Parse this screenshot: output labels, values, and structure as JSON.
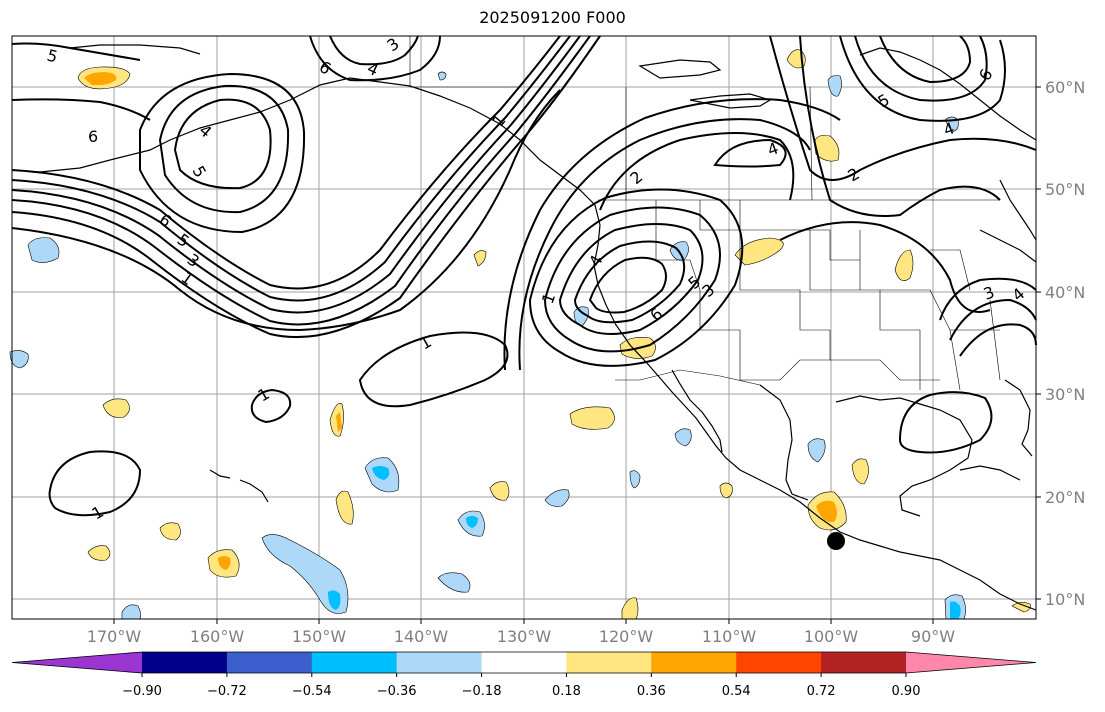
{
  "title": "2025091200 F000",
  "lat_labels": [
    "60°N",
    "50°N",
    "40°N",
    "30°N",
    "20°N",
    "10°N"
  ],
  "lon_labels": [
    "170°W",
    "160°W",
    "150°W",
    "140°W",
    "130°W",
    "120°W",
    "110°W",
    "100°W",
    "90°W"
  ],
  "colorbar": {
    "ticks": [
      "−0.90",
      "−0.72",
      "−0.54",
      "−0.36",
      "−0.18",
      "0.18",
      "0.36",
      "0.54",
      "0.72",
      "0.90"
    ],
    "colors": [
      "#9b35d2",
      "#00008b",
      "#3a5fcd",
      "#00bfff",
      "#add8f7",
      "#ffffff",
      "#ffe680",
      "#ffa500",
      "#ff4500",
      "#b22222",
      "#ff88aa"
    ]
  },
  "contour_labels": [
    "5",
    "6",
    "3",
    "4",
    "6",
    "5",
    "4",
    "6",
    "5",
    "3",
    "1",
    "1",
    "1",
    "1",
    "2",
    "4",
    "5",
    "6",
    "3",
    "1",
    "1",
    "4",
    "2",
    "5",
    "6",
    "4",
    "3",
    "4"
  ],
  "marker": {
    "name": "point-marker",
    "color": "#000000"
  }
}
